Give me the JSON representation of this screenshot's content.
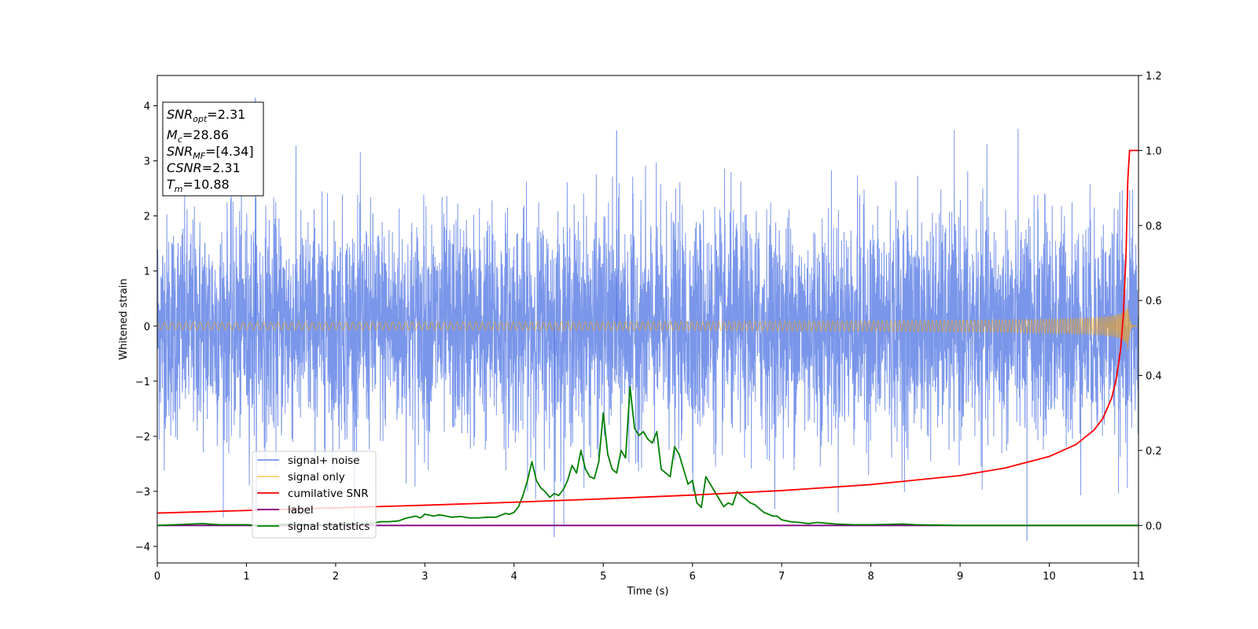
{
  "chart_data": {
    "type": "line",
    "xlabel": "Time (s)",
    "ylabel": "Whitened strain",
    "xlim": [
      0,
      11
    ],
    "ylim_left": [
      -4.3,
      4.55
    ],
    "ylim_right": [
      -0.1,
      1.2
    ],
    "x_ticks": [
      0,
      1,
      2,
      3,
      4,
      5,
      6,
      7,
      8,
      9,
      10,
      11
    ],
    "y_ticks_left": [
      -4,
      -3,
      -2,
      -1,
      0,
      1,
      2,
      3,
      4
    ],
    "y_ticks_right": [
      0.0,
      0.2,
      0.4,
      0.6,
      0.8,
      1.0,
      1.2
    ],
    "grid": false,
    "legend_position": "lower-left",
    "annotation": {
      "lines": [
        {
          "base": "SNR",
          "sub": "opt",
          "value": "=2.31"
        },
        {
          "base": "M",
          "sub": "c",
          "value": "=28.86"
        },
        {
          "base": "SNR",
          "sub": "MF",
          "value": "=[4.34]"
        },
        {
          "base": "CSNR",
          "sub": "",
          "value": "=2.31"
        },
        {
          "base": "T",
          "sub": "m",
          "value": "=10.88"
        }
      ]
    },
    "series": [
      {
        "name": "signal+ noise",
        "axis": "left",
        "color": "#4169e1",
        "kind": "noise",
        "typical_std": 1.0,
        "extrema": {
          "max": 4.15,
          "min": -3.9
        }
      },
      {
        "name": "signal only",
        "axis": "left",
        "color": "#ffa500",
        "kind": "chirp",
        "t_merge": 10.88,
        "peak_amplitude": 0.5
      },
      {
        "name": "cumilative SNR",
        "axis": "right",
        "color": "#ff0000",
        "x": [
          0,
          1,
          2,
          3,
          4,
          5,
          6,
          7,
          8,
          9,
          9.5,
          10,
          10.3,
          10.5,
          10.6,
          10.7,
          10.75,
          10.8,
          10.83,
          10.86,
          10.88,
          10.9,
          11
        ],
        "values": [
          0.033,
          0.04,
          0.047,
          0.054,
          0.062,
          0.071,
          0.081,
          0.093,
          0.109,
          0.133,
          0.153,
          0.184,
          0.216,
          0.254,
          0.285,
          0.34,
          0.39,
          0.47,
          0.56,
          0.72,
          0.92,
          1.0,
          1.0
        ]
      },
      {
        "name": "label",
        "axis": "right",
        "color": "#800080",
        "x": [
          0,
          11
        ],
        "values": [
          0.0,
          0.0
        ]
      },
      {
        "name": "signal statistics",
        "axis": "right",
        "color": "#008000",
        "x": [
          0,
          0.3,
          0.5,
          0.7,
          1.0,
          1.2,
          1.5,
          1.8,
          2.0,
          2.2,
          2.4,
          2.5,
          2.6,
          2.7,
          2.8,
          2.9,
          2.95,
          3.0,
          3.1,
          3.15,
          3.2,
          3.3,
          3.4,
          3.5,
          3.6,
          3.7,
          3.8,
          3.9,
          3.95,
          4.0,
          4.05,
          4.1,
          4.15,
          4.2,
          4.25,
          4.3,
          4.35,
          4.4,
          4.45,
          4.5,
          4.55,
          4.6,
          4.65,
          4.7,
          4.75,
          4.8,
          4.85,
          4.9,
          4.95,
          5.0,
          5.05,
          5.1,
          5.15,
          5.2,
          5.25,
          5.3,
          5.35,
          5.4,
          5.45,
          5.5,
          5.55,
          5.6,
          5.65,
          5.7,
          5.75,
          5.8,
          5.85,
          5.9,
          5.95,
          6.0,
          6.05,
          6.1,
          6.15,
          6.2,
          6.25,
          6.3,
          6.35,
          6.4,
          6.45,
          6.5,
          6.55,
          6.6,
          6.65,
          6.7,
          6.75,
          6.8,
          6.85,
          6.9,
          6.95,
          7.0,
          7.1,
          7.2,
          7.3,
          7.4,
          7.5,
          7.6,
          7.8,
          8.0,
          8.2,
          8.35,
          8.5,
          8.7,
          9.0,
          9.5,
          10.0,
          10.5,
          11.0
        ],
        "values": [
          0.0,
          0.003,
          0.005,
          0.002,
          0.002,
          0.0,
          0.004,
          0.002,
          0.003,
          0.005,
          0.005,
          0.01,
          0.01,
          0.012,
          0.02,
          0.025,
          0.02,
          0.03,
          0.025,
          0.028,
          0.027,
          0.022,
          0.024,
          0.02,
          0.02,
          0.022,
          0.022,
          0.032,
          0.03,
          0.035,
          0.05,
          0.08,
          0.12,
          0.17,
          0.12,
          0.1,
          0.09,
          0.075,
          0.085,
          0.08,
          0.095,
          0.12,
          0.16,
          0.14,
          0.2,
          0.15,
          0.13,
          0.125,
          0.17,
          0.3,
          0.19,
          0.15,
          0.14,
          0.2,
          0.18,
          0.37,
          0.26,
          0.24,
          0.25,
          0.23,
          0.22,
          0.25,
          0.15,
          0.14,
          0.13,
          0.21,
          0.19,
          0.15,
          0.11,
          0.12,
          0.06,
          0.048,
          0.13,
          0.11,
          0.09,
          0.07,
          0.05,
          0.06,
          0.055,
          0.09,
          0.08,
          0.07,
          0.06,
          0.055,
          0.045,
          0.035,
          0.03,
          0.025,
          0.025,
          0.015,
          0.01,
          0.008,
          0.005,
          0.008,
          0.006,
          0.004,
          0.002,
          0.002,
          0.003,
          0.004,
          0.002,
          0.001,
          0.0,
          0.0,
          0.0,
          0.0,
          0.0
        ]
      }
    ]
  }
}
